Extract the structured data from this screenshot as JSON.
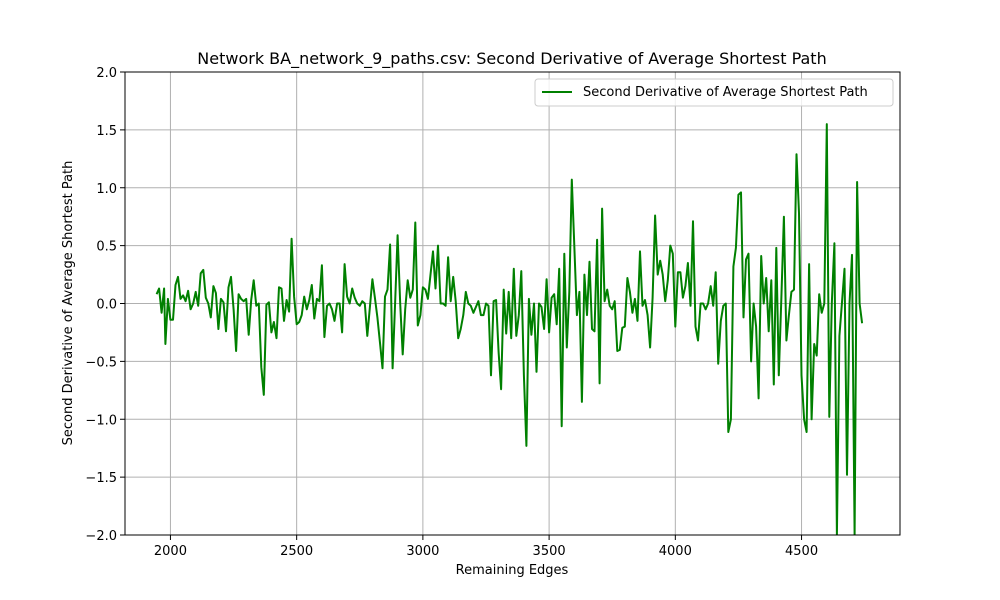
{
  "chart_data": {
    "type": "line",
    "title": "Network BA_network_9_paths.csv: Second Derivative of Average Shortest Path",
    "xlabel": "Remaining Edges",
    "ylabel": "Second Derivative of Average Shortest Path",
    "xlim": [
      1820,
      4890
    ],
    "ylim": [
      -2.0,
      2.0
    ],
    "xticks": [
      2000,
      2500,
      3000,
      3500,
      4000,
      4500
    ],
    "yticks": [
      -2.0,
      -1.5,
      -1.0,
      -0.5,
      0.0,
      0.5,
      1.0,
      1.5,
      2.0
    ],
    "xtick_labels": [
      "2000",
      "2500",
      "3000",
      "3500",
      "4000",
      "4500"
    ],
    "ytick_labels": [
      "−2.0",
      "−1.5",
      "−1.0",
      "−0.5",
      "0.0",
      "0.5",
      "1.0",
      "1.5",
      "2.0"
    ],
    "grid": true,
    "legend_position": "top-right",
    "series": [
      {
        "name": "Second Derivative of Average Shortest Path",
        "color": "#008000",
        "points": [
          [
            1945,
            0.08
          ],
          [
            1955,
            0.13
          ],
          [
            1965,
            -0.08
          ],
          [
            1975,
            0.13
          ],
          [
            1980,
            -0.35
          ],
          [
            1990,
            0.04
          ],
          [
            2000,
            -0.14
          ],
          [
            2010,
            -0.14
          ],
          [
            2020,
            0.16
          ],
          [
            2030,
            0.23
          ],
          [
            2040,
            0.04
          ],
          [
            2050,
            0.07
          ],
          [
            2060,
            0.02
          ],
          [
            2070,
            0.11
          ],
          [
            2080,
            -0.05
          ],
          [
            2090,
            0.0
          ],
          [
            2100,
            0.1
          ],
          [
            2110,
            -0.02
          ],
          [
            2120,
            0.26
          ],
          [
            2130,
            0.29
          ],
          [
            2140,
            0.05
          ],
          [
            2150,
            0.0
          ],
          [
            2160,
            -0.12
          ],
          [
            2170,
            0.15
          ],
          [
            2180,
            0.09
          ],
          [
            2190,
            -0.22
          ],
          [
            2200,
            0.04
          ],
          [
            2210,
            0.01
          ],
          [
            2220,
            -0.24
          ],
          [
            2230,
            0.14
          ],
          [
            2240,
            0.23
          ],
          [
            2250,
            -0.05
          ],
          [
            2260,
            -0.41
          ],
          [
            2270,
            0.08
          ],
          [
            2280,
            0.04
          ],
          [
            2290,
            0.02
          ],
          [
            2300,
            0.04
          ],
          [
            2310,
            -0.27
          ],
          [
            2320,
            0.03
          ],
          [
            2330,
            0.2
          ],
          [
            2340,
            -0.02
          ],
          [
            2350,
            0.0
          ],
          [
            2360,
            -0.55
          ],
          [
            2370,
            -0.79
          ],
          [
            2380,
            -0.01
          ],
          [
            2390,
            0.01
          ],
          [
            2400,
            -0.25
          ],
          [
            2410,
            -0.16
          ],
          [
            2420,
            -0.3
          ],
          [
            2430,
            0.14
          ],
          [
            2440,
            0.13
          ],
          [
            2450,
            -0.15
          ],
          [
            2460,
            0.03
          ],
          [
            2470,
            -0.07
          ],
          [
            2480,
            0.56
          ],
          [
            2490,
            0.06
          ],
          [
            2500,
            -0.18
          ],
          [
            2510,
            -0.16
          ],
          [
            2520,
            -0.1
          ],
          [
            2530,
            0.06
          ],
          [
            2540,
            -0.05
          ],
          [
            2550,
            0.03
          ],
          [
            2560,
            0.16
          ],
          [
            2570,
            -0.13
          ],
          [
            2580,
            0.04
          ],
          [
            2590,
            0.02
          ],
          [
            2600,
            0.33
          ],
          [
            2610,
            -0.29
          ],
          [
            2620,
            -0.02
          ],
          [
            2630,
            0.0
          ],
          [
            2640,
            -0.05
          ],
          [
            2650,
            -0.15
          ],
          [
            2660,
            0.0
          ],
          [
            2670,
            0.0
          ],
          [
            2680,
            -0.25
          ],
          [
            2690,
            0.34
          ],
          [
            2700,
            0.06
          ],
          [
            2710,
            0.0
          ],
          [
            2720,
            0.13
          ],
          [
            2730,
            0.05
          ],
          [
            2740,
            0.0
          ],
          [
            2750,
            -0.02
          ],
          [
            2760,
            0.02
          ],
          [
            2770,
            0.0
          ],
          [
            2780,
            -0.28
          ],
          [
            2790,
            -0.03
          ],
          [
            2800,
            0.21
          ],
          [
            2810,
            0.05
          ],
          [
            2820,
            -0.12
          ],
          [
            2830,
            -0.34
          ],
          [
            2840,
            -0.56
          ],
          [
            2850,
            0.06
          ],
          [
            2860,
            0.12
          ],
          [
            2870,
            0.51
          ],
          [
            2880,
            -0.56
          ],
          [
            2890,
            0.0
          ],
          [
            2900,
            0.59
          ],
          [
            2910,
            0.0
          ],
          [
            2920,
            -0.44
          ],
          [
            2930,
            -0.05
          ],
          [
            2940,
            0.2
          ],
          [
            2950,
            0.05
          ],
          [
            2960,
            0.12
          ],
          [
            2970,
            0.7
          ],
          [
            2980,
            -0.19
          ],
          [
            2990,
            -0.1
          ],
          [
            3000,
            0.14
          ],
          [
            3010,
            0.12
          ],
          [
            3020,
            0.04
          ],
          [
            3030,
            0.25
          ],
          [
            3040,
            0.45
          ],
          [
            3050,
            0.13
          ],
          [
            3060,
            0.5
          ],
          [
            3070,
            0.0
          ],
          [
            3080,
            0.0
          ],
          [
            3090,
            -0.02
          ],
          [
            3100,
            0.4
          ],
          [
            3110,
            0.02
          ],
          [
            3120,
            0.23
          ],
          [
            3130,
            0.02
          ],
          [
            3140,
            -0.3
          ],
          [
            3150,
            -0.22
          ],
          [
            3160,
            -0.1
          ],
          [
            3170,
            0.1
          ],
          [
            3180,
            0.0
          ],
          [
            3190,
            -0.02
          ],
          [
            3200,
            -0.08
          ],
          [
            3210,
            -0.03
          ],
          [
            3220,
            0.02
          ],
          [
            3230,
            -0.1
          ],
          [
            3240,
            -0.1
          ],
          [
            3250,
            0.0
          ],
          [
            3260,
            -0.02
          ],
          [
            3270,
            -0.62
          ],
          [
            3280,
            0.02
          ],
          [
            3290,
            0.03
          ],
          [
            3300,
            -0.42
          ],
          [
            3310,
            -0.74
          ],
          [
            3320,
            0.12
          ],
          [
            3330,
            -0.26
          ],
          [
            3340,
            0.1
          ],
          [
            3350,
            -0.3
          ],
          [
            3360,
            0.3
          ],
          [
            3370,
            -0.28
          ],
          [
            3380,
            -0.1
          ],
          [
            3390,
            0.28
          ],
          [
            3400,
            -0.62
          ],
          [
            3410,
            -1.23
          ],
          [
            3420,
            0.04
          ],
          [
            3430,
            -0.27
          ],
          [
            3440,
            0.0
          ],
          [
            3450,
            -0.59
          ],
          [
            3460,
            0.0
          ],
          [
            3470,
            -0.03
          ],
          [
            3480,
            -0.22
          ],
          [
            3490,
            0.21
          ],
          [
            3500,
            -0.25
          ],
          [
            3510,
            0.05
          ],
          [
            3520,
            0.08
          ],
          [
            3530,
            -0.18
          ],
          [
            3540,
            0.3
          ],
          [
            3550,
            -1.06
          ],
          [
            3560,
            0.43
          ],
          [
            3570,
            -0.38
          ],
          [
            3580,
            0.1
          ],
          [
            3590,
            1.07
          ],
          [
            3600,
            0.5
          ],
          [
            3610,
            -0.1
          ],
          [
            3620,
            0.1
          ],
          [
            3630,
            -0.85
          ],
          [
            3640,
            0.25
          ],
          [
            3650,
            -0.1
          ],
          [
            3660,
            0.36
          ],
          [
            3670,
            -0.22
          ],
          [
            3680,
            -0.24
          ],
          [
            3690,
            0.55
          ],
          [
            3700,
            -0.69
          ],
          [
            3710,
            0.82
          ],
          [
            3720,
            0.02
          ],
          [
            3730,
            0.12
          ],
          [
            3740,
            -0.02
          ],
          [
            3750,
            -0.05
          ],
          [
            3760,
            0.02
          ],
          [
            3770,
            -0.41
          ],
          [
            3780,
            -0.4
          ],
          [
            3790,
            -0.21
          ],
          [
            3800,
            -0.2
          ],
          [
            3810,
            0.22
          ],
          [
            3820,
            0.1
          ],
          [
            3830,
            -0.08
          ],
          [
            3840,
            0.04
          ],
          [
            3850,
            -0.15
          ],
          [
            3860,
            0.45
          ],
          [
            3870,
            -0.02
          ],
          [
            3880,
            0.03
          ],
          [
            3890,
            -0.1
          ],
          [
            3900,
            -0.38
          ],
          [
            3910,
            0.05
          ],
          [
            3920,
            0.76
          ],
          [
            3930,
            0.25
          ],
          [
            3940,
            0.37
          ],
          [
            3950,
            0.25
          ],
          [
            3960,
            0.02
          ],
          [
            3970,
            0.2
          ],
          [
            3980,
            0.5
          ],
          [
            3990,
            0.43
          ],
          [
            4000,
            -0.2
          ],
          [
            4010,
            0.27
          ],
          [
            4020,
            0.27
          ],
          [
            4030,
            0.05
          ],
          [
            4040,
            0.15
          ],
          [
            4050,
            0.35
          ],
          [
            4060,
            -0.02
          ],
          [
            4070,
            0.71
          ],
          [
            4080,
            -0.2
          ],
          [
            4090,
            -0.32
          ],
          [
            4100,
            0.0
          ],
          [
            4110,
            0.0
          ],
          [
            4120,
            -0.05
          ],
          [
            4130,
            0.0
          ],
          [
            4140,
            0.15
          ],
          [
            4150,
            -0.02
          ],
          [
            4160,
            0.27
          ],
          [
            4170,
            -0.52
          ],
          [
            4180,
            -0.15
          ],
          [
            4190,
            -0.02
          ],
          [
            4200,
            0.0
          ],
          [
            4210,
            -1.11
          ],
          [
            4220,
            -1.0
          ],
          [
            4230,
            0.32
          ],
          [
            4240,
            0.48
          ],
          [
            4250,
            0.94
          ],
          [
            4260,
            0.96
          ],
          [
            4270,
            -0.12
          ],
          [
            4280,
            0.38
          ],
          [
            4290,
            0.43
          ],
          [
            4300,
            -0.5
          ],
          [
            4310,
            0.0
          ],
          [
            4320,
            -0.2
          ],
          [
            4330,
            -0.82
          ],
          [
            4340,
            0.41
          ],
          [
            4350,
            0.0
          ],
          [
            4360,
            0.22
          ],
          [
            4370,
            -0.24
          ],
          [
            4380,
            0.2
          ],
          [
            4390,
            -0.7
          ],
          [
            4400,
            0.48
          ],
          [
            4410,
            -0.62
          ],
          [
            4420,
            0.06
          ],
          [
            4430,
            0.75
          ],
          [
            4440,
            -0.32
          ],
          [
            4450,
            -0.1
          ],
          [
            4460,
            0.1
          ],
          [
            4470,
            0.12
          ],
          [
            4480,
            1.29
          ],
          [
            4490,
            0.78
          ],
          [
            4500,
            -0.62
          ],
          [
            4510,
            -1.0
          ],
          [
            4520,
            -1.11
          ],
          [
            4530,
            0.34
          ],
          [
            4540,
            -1.0
          ],
          [
            4550,
            -0.35
          ],
          [
            4560,
            -0.45
          ],
          [
            4570,
            0.08
          ],
          [
            4580,
            -0.08
          ],
          [
            4590,
            0.0
          ],
          [
            4600,
            1.55
          ],
          [
            4610,
            -0.98
          ],
          [
            4620,
            0.0
          ],
          [
            4630,
            0.52
          ],
          [
            4640,
            -2.0
          ],
          [
            4650,
            -0.28
          ],
          [
            4660,
            0.0
          ],
          [
            4670,
            0.3
          ],
          [
            4680,
            -1.48
          ],
          [
            4690,
            0.0
          ],
          [
            4700,
            0.42
          ],
          [
            4710,
            -2.0
          ],
          [
            4720,
            1.05
          ],
          [
            4730,
            0.0
          ],
          [
            4740,
            -0.17
          ]
        ]
      }
    ]
  }
}
